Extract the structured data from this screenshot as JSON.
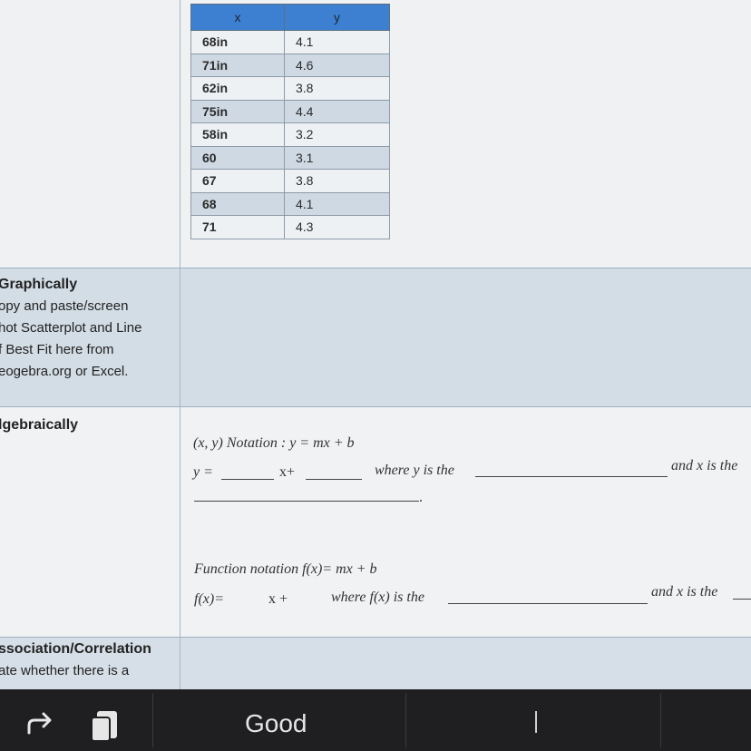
{
  "table": {
    "headers": [
      "x",
      "y"
    ],
    "rows": [
      {
        "x": "68in",
        "y": "4.1"
      },
      {
        "x": "71in",
        "y": "4.6"
      },
      {
        "x": "62in",
        "y": "3.8"
      },
      {
        "x": "75in",
        "y": "4.4"
      },
      {
        "x": "58in",
        "y": "3.2"
      },
      {
        "x": "60",
        "y": "3.1"
      },
      {
        "x": "67",
        "y": "3.8"
      },
      {
        "x": "68",
        "y": "4.1"
      },
      {
        "x": "71",
        "y": "4.3"
      }
    ]
  },
  "graphically": {
    "heading": "Graphically",
    "lines": [
      "opy and paste/screen",
      "hot Scatterplot and Line",
      "f Best Fit here from",
      "eogebra.org or Excel."
    ]
  },
  "algebraically": {
    "heading": "lgebraically",
    "xy_notation": "(x, y) Notation :  y = mx + b",
    "y_eq": "y =",
    "x_plus": "x+",
    "where_y": "where y is the",
    "and_x_is_the": "and x is the",
    "period": ".",
    "function_notation": "Function notation f(x)= mx + b",
    "fx_eq": "f(x)=",
    "fx_x_plus": "x +",
    "where_fx": "where f(x) is the",
    "and_x_is_the_2": "and x is the"
  },
  "association": {
    "heading": "ssociation/Correlation",
    "line1": "ate whether there is a"
  },
  "toolbar": {
    "suggestion": "Good",
    "cursor_icon": "text-cursor-icon",
    "undo_icon": "redo-arrow-icon",
    "clipboard_icon": "clipboard-icon"
  },
  "colors": {
    "table_header": "#3d7fd0",
    "row_shade": "#cfd9e3",
    "band_shade": "#d3dde6",
    "toolbar_bg": "#1f1f21"
  }
}
